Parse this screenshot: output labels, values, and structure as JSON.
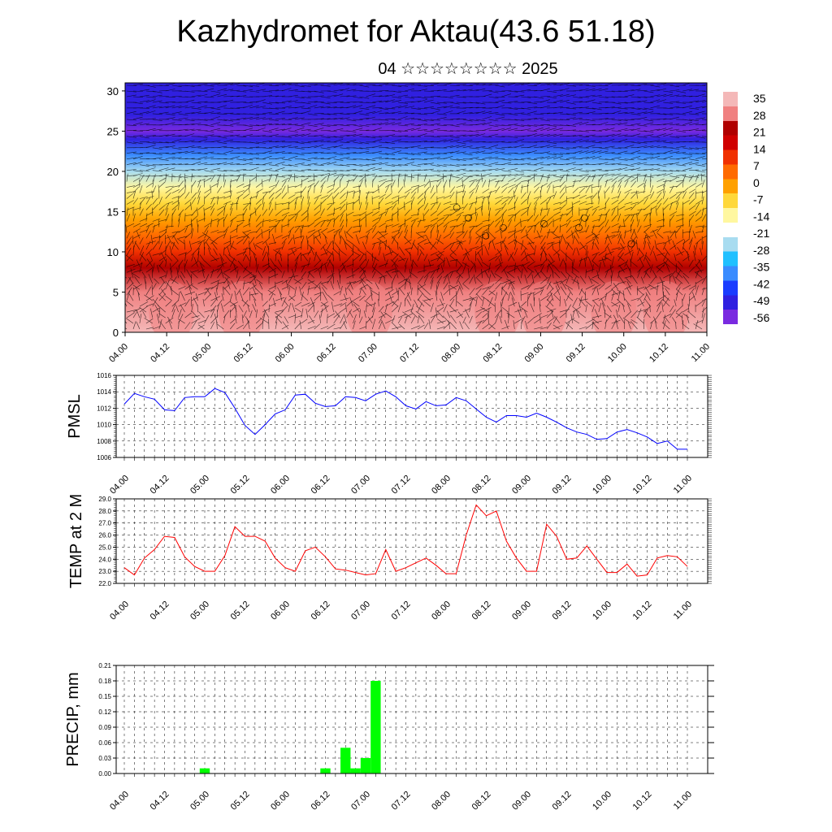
{
  "title": "Kazhydromet for Aktau(43.6 51.18)",
  "subtitle": "04 ☆☆☆☆☆☆☆☆ 2025",
  "chart_data": [
    {
      "type": "heatmap",
      "name": "cross-section",
      "x_ticks": [
        "04.00",
        "04.12",
        "05.00",
        "05.12",
        "06.00",
        "06.12",
        "07.00",
        "07.12",
        "08.00",
        "08.12",
        "09.00",
        "09.12",
        "10.00",
        "10.12",
        "11.00"
      ],
      "y_ticks": [
        0,
        5,
        10,
        15,
        20,
        25,
        30
      ],
      "ylim": [
        0,
        31
      ],
      "colorbar_labels": [
        "35",
        "28",
        "21",
        "14",
        "7",
        "0",
        "-7",
        "-14",
        "-21",
        "-28",
        "-35",
        "-42",
        "-49",
        "-56"
      ],
      "colorbar_range": [
        -60,
        38
      ],
      "colorbar_colors": [
        "#7a2ae0",
        "#3020e0",
        "#1a3cff",
        "#3a8cff",
        "#20c0ff",
        "#a8dcf0",
        "#ffffff",
        "#fff7a0",
        "#ffd83a",
        "#ffa000",
        "#ff6a00",
        "#f03000",
        "#d00000",
        "#b00000",
        "#f08080",
        "#f4b8b8"
      ],
      "temperature_profile": [
        {
          "alt": 0,
          "value": 32
        },
        {
          "alt": 5,
          "value": 27
        },
        {
          "alt": 8,
          "value": 20
        },
        {
          "alt": 10,
          "value": 12
        },
        {
          "alt": 12,
          "value": 5
        },
        {
          "alt": 14,
          "value": -2
        },
        {
          "alt": 16,
          "value": -8
        },
        {
          "alt": 18,
          "value": -16
        },
        {
          "alt": 20,
          "value": -26
        },
        {
          "alt": 22,
          "value": -36
        },
        {
          "alt": 24,
          "value": -48
        },
        {
          "alt": 25,
          "value": -56
        },
        {
          "alt": 27,
          "value": -52
        },
        {
          "alt": 31,
          "value": -50
        }
      ],
      "vectors": true
    },
    {
      "type": "line",
      "ylabel": "PMSL",
      "color": "#0000ff",
      "x_ticks": [
        "04.00",
        "04.12",
        "05.00",
        "05.12",
        "06.00",
        "06.12",
        "07.00",
        "07.12",
        "08.00",
        "08.12",
        "09.00",
        "09.12",
        "10.00",
        "10.12",
        "11.00"
      ],
      "y_ticks": [
        "1006",
        "1008",
        "1010",
        "1012",
        "1014",
        "1016"
      ],
      "ylim": [
        1006,
        1016
      ],
      "values": [
        1012.5,
        1013.8,
        1013.4,
        1013.1,
        1011.8,
        1011.7,
        1013.3,
        1013.4,
        1013.4,
        1014.4,
        1013.9,
        1012.0,
        1009.9,
        1008.8,
        1010.0,
        1011.3,
        1011.8,
        1013.6,
        1013.7,
        1012.6,
        1012.2,
        1012.3,
        1013.4,
        1013.3,
        1012.9,
        1013.7,
        1014.1,
        1013.4,
        1012.3,
        1011.9,
        1012.8,
        1012.3,
        1012.4,
        1013.3,
        1012.9,
        1011.9,
        1010.9,
        1010.3,
        1011.1,
        1011.1,
        1010.9,
        1011.4,
        1010.9,
        1010.3,
        1009.6,
        1009.1,
        1008.8,
        1008.2,
        1008.3,
        1009.1,
        1009.4,
        1009.0,
        1008.5,
        1007.7,
        1008.0,
        1007.0,
        1007.0
      ]
    },
    {
      "type": "line",
      "ylabel": "TEMP at 2 M",
      "color": "#ff0000",
      "x_ticks": [
        "04.00",
        "04.12",
        "05.00",
        "05.12",
        "06.00",
        "06.12",
        "07.00",
        "07.12",
        "08.00",
        "08.12",
        "09.00",
        "09.12",
        "10.00",
        "10.12",
        "11.00"
      ],
      "y_ticks": [
        "22.0",
        "23.0",
        "24.0",
        "25.0",
        "26.0",
        "27.0",
        "28.0",
        "29.0"
      ],
      "ylim": [
        22,
        29
      ],
      "values": [
        23.3,
        22.7,
        24.1,
        24.8,
        25.9,
        25.8,
        24.2,
        23.4,
        23.0,
        23.0,
        24.3,
        26.7,
        25.9,
        25.9,
        25.5,
        24.1,
        23.3,
        23.0,
        24.7,
        25.0,
        24.2,
        23.2,
        23.1,
        22.9,
        22.7,
        22.8,
        24.8,
        23.0,
        23.3,
        23.7,
        24.1,
        23.5,
        22.8,
        22.8,
        26.0,
        28.5,
        27.6,
        28.0,
        25.5,
        24.1,
        23.0,
        23.0,
        26.9,
        25.9,
        24.0,
        24.1,
        25.1,
        24.0,
        22.9,
        22.9,
        23.6,
        22.6,
        22.7,
        24.1,
        24.3,
        24.2,
        23.4
      ]
    },
    {
      "type": "bar",
      "ylabel": "PRECIP, mm",
      "color": "#00ff00",
      "x_ticks": [
        "04.00",
        "04.12",
        "05.00",
        "05.12",
        "06.00",
        "06.12",
        "07.00",
        "07.12",
        "08.00",
        "08.12",
        "09.00",
        "09.12",
        "10.00",
        "10.12",
        "11.00"
      ],
      "y_ticks": [
        "0.00",
        "0.03",
        "0.06",
        "0.09",
        "0.12",
        "0.15",
        "0.18",
        "0.21"
      ],
      "ylim": [
        0,
        0.21
      ],
      "bars": [
        {
          "step": 8,
          "value": 0.01
        },
        {
          "step": 20,
          "value": 0.01
        },
        {
          "step": 22,
          "value": 0.05
        },
        {
          "step": 23,
          "value": 0.01
        },
        {
          "step": 24,
          "value": 0.03
        },
        {
          "step": 25,
          "value": 0.18
        }
      ]
    }
  ]
}
